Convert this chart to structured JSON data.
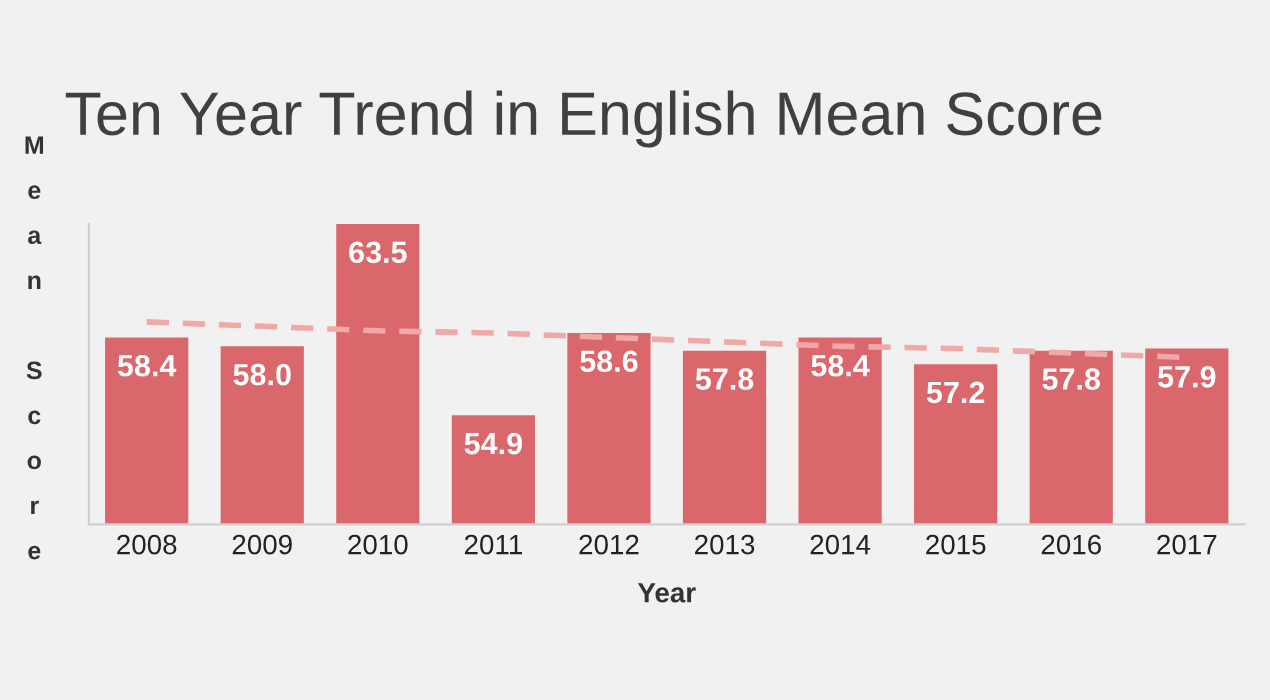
{
  "chart_data": {
    "type": "bar",
    "title": "Ten Year Trend in English Mean Score",
    "xlabel": "Year",
    "ylabel": "Mean Score",
    "categories": [
      "2008",
      "2009",
      "2010",
      "2011",
      "2012",
      "2013",
      "2014",
      "2015",
      "2016",
      "2017"
    ],
    "series": [
      {
        "color": "#d9676b",
        "values": [
          58.4,
          58.0,
          63.5,
          54.9,
          58.6,
          57.8,
          58.4,
          57.2,
          57.8,
          57.9
        ],
        "value_labels": [
          "58.4",
          "58.0",
          "63.5",
          "54.9",
          "58.6",
          "57.8",
          "58.4",
          "57.2",
          "57.8",
          "57.9"
        ]
      },
      {
        "type": "line",
        "color": "#f0a8a8",
        "values": [
          59.1,
          58.9,
          58.7,
          58.6,
          58.4,
          58.2,
          58.0,
          57.9,
          57.7,
          57.5
        ],
        "line_style": "dashed"
      }
    ],
    "ylim": [
      50,
      63.5
    ],
    "tick_labels": "x",
    "grid": false
  }
}
